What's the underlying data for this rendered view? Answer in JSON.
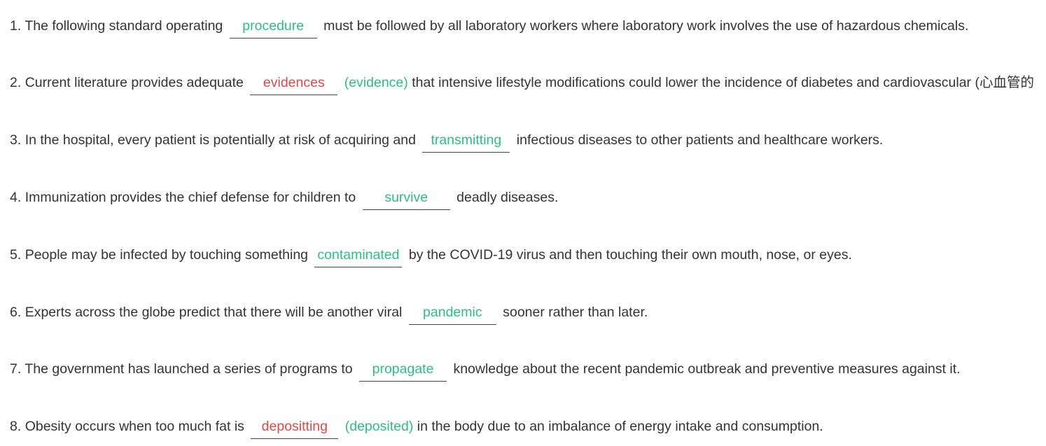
{
  "items": [
    {
      "num": "1.",
      "before": "The following standard operating",
      "answer": "procedure",
      "status": "correct",
      "correction": "",
      "after": "must be followed by all laboratory workers where laboratory work involves the use of hazardous chemicals."
    },
    {
      "num": "2.",
      "before": "Current literature provides adequate",
      "answer": "evidences",
      "status": "wrong",
      "correction": "(evidence)",
      "after": "that intensive lifestyle modifications could lower the incidence of diabetes and cardiovascular (心血管的"
    },
    {
      "num": "3.",
      "before": "In the hospital, every patient is potentially at risk of acquiring and",
      "answer": "transmitting",
      "status": "correct",
      "correction": "",
      "after": "infectious diseases to other patients and healthcare workers."
    },
    {
      "num": "4.",
      "before": "Immunization provides the chief defense for children to",
      "answer": "survive",
      "status": "correct",
      "correction": "",
      "after": "deadly diseases."
    },
    {
      "num": "5.",
      "before": "People may be infected by touching something",
      "answer": "contaminated",
      "status": "correct",
      "correction": "",
      "after": "by the COVID-19 virus and then touching their own mouth, nose, or eyes."
    },
    {
      "num": "6.",
      "before": "Experts across the globe predict that there will be another viral",
      "answer": "pandemic",
      "status": "correct",
      "correction": "",
      "after": "sooner rather than later."
    },
    {
      "num": "7.",
      "before": "The government has launched a series of programs to",
      "answer": "propagate",
      "status": "correct",
      "correction": "",
      "after": "knowledge about the recent pandemic outbreak and preventive measures against it."
    },
    {
      "num": "8.",
      "before": "Obesity occurs when too much fat is",
      "answer": "depositting",
      "status": "wrong",
      "correction": "(deposited)",
      "after": "in the body due to an imbalance of energy intake and consumption."
    }
  ],
  "colors": {
    "correct": "#2cbf82",
    "wrong": "#e04848",
    "text": "#333333"
  }
}
